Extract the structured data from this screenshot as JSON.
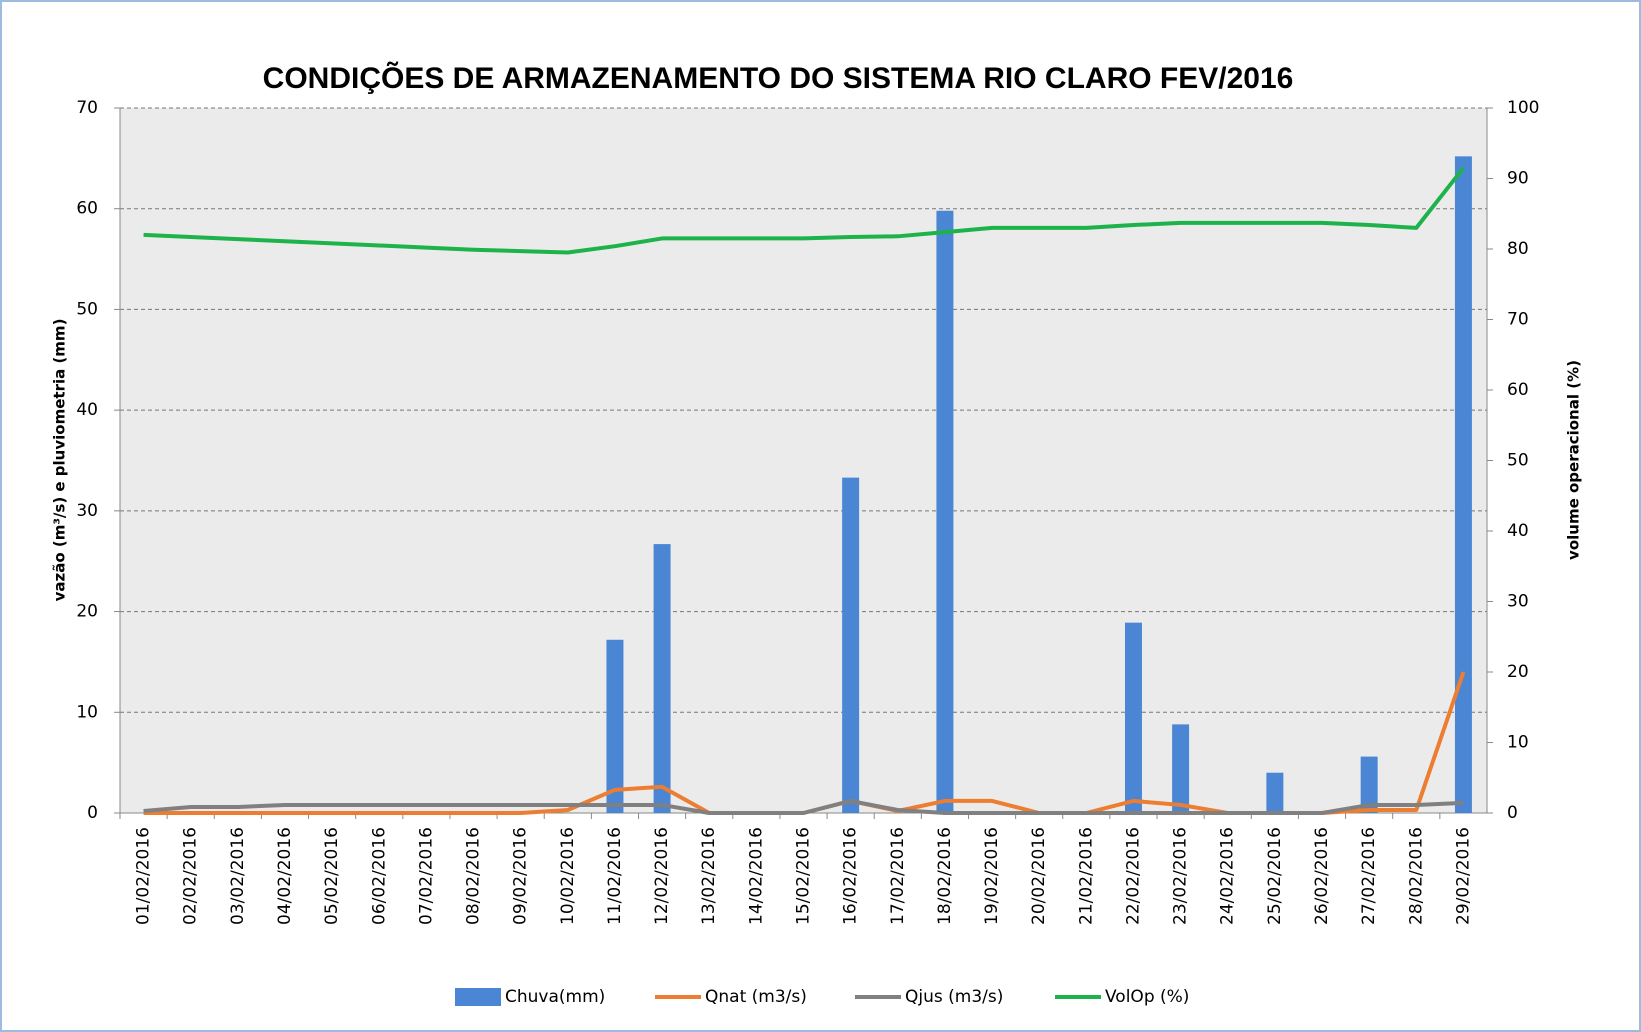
{
  "chart_data": {
    "type": "bar",
    "title": "CONDIÇÕES DE ARMAZENAMENTO  DO SISTEMA RIO CLARO    FEV/2016",
    "y_label": "vazão  (m³/s) e pluviometria  (mm)",
    "y2_label": "volume operacional  (%)",
    "categories": [
      "01/02/2016",
      "02/02/2016",
      "03/02/2016",
      "04/02/2016",
      "05/02/2016",
      "06/02/2016",
      "07/02/2016",
      "08/02/2016",
      "09/02/2016",
      "10/02/2016",
      "11/02/2016",
      "12/02/2016",
      "13/02/2016",
      "14/02/2016",
      "15/02/2016",
      "16/02/2016",
      "17/02/2016",
      "18/02/2016",
      "19/02/2016",
      "20/02/2016",
      "21/02/2016",
      "22/02/2016",
      "23/02/2016",
      "24/02/2016",
      "25/02/2016",
      "26/02/2016",
      "27/02/2016",
      "28/02/2016",
      "29/02/2016"
    ],
    "ylim": [
      0,
      70
    ],
    "yticks": [
      0,
      10,
      20,
      30,
      40,
      50,
      60,
      70
    ],
    "y2lim": [
      0,
      100
    ],
    "y2ticks": [
      0,
      10,
      20,
      30,
      40,
      50,
      60,
      70,
      80,
      90,
      100
    ],
    "grid": true,
    "legend": "bottom",
    "series": [
      {
        "name": "Chuva(mm)",
        "type": "bar",
        "color": "#4a86d4",
        "values": [
          0,
          0,
          0,
          0,
          0,
          0,
          0,
          0,
          0,
          0,
          17.2,
          26.7,
          0,
          0,
          0,
          33.3,
          0,
          59.8,
          0,
          0,
          0,
          18.9,
          8.8,
          0,
          4.0,
          0,
          5.6,
          0,
          65.2
        ]
      },
      {
        "name": "Qnat (m3/s)",
        "type": "line",
        "color": "#ed7d31",
        "values": [
          0,
          0,
          0,
          0,
          0,
          0,
          0,
          0,
          0,
          0.3,
          2.3,
          2.6,
          0,
          0,
          0,
          1.2,
          0.2,
          1.2,
          1.2,
          0,
          0,
          1.2,
          0.8,
          0,
          0,
          0,
          0.3,
          0.3,
          14
        ]
      },
      {
        "name": "Qjus (m3/s)",
        "type": "line",
        "color": "#808080",
        "values": [
          0.2,
          0.6,
          0.6,
          0.8,
          0.8,
          0.8,
          0.8,
          0.8,
          0.8,
          0.8,
          0.8,
          0.8,
          0,
          0,
          0,
          1.2,
          0.3,
          0,
          0,
          0,
          0,
          0,
          0,
          0,
          0,
          0,
          0.8,
          0.8,
          1.0
        ]
      },
      {
        "name": "VolOp (%)",
        "type": "line",
        "axis": "y2",
        "color": "#1db34a",
        "values": [
          82,
          81.7,
          81.4,
          81.1,
          80.8,
          80.5,
          80.2,
          79.9,
          79.7,
          79.5,
          80.4,
          81.5,
          81.5,
          81.5,
          81.5,
          81.7,
          81.8,
          82.4,
          83,
          83,
          83,
          83.4,
          83.7,
          83.7,
          83.7,
          83.7,
          83.4,
          83.0,
          91.5
        ]
      }
    ]
  }
}
